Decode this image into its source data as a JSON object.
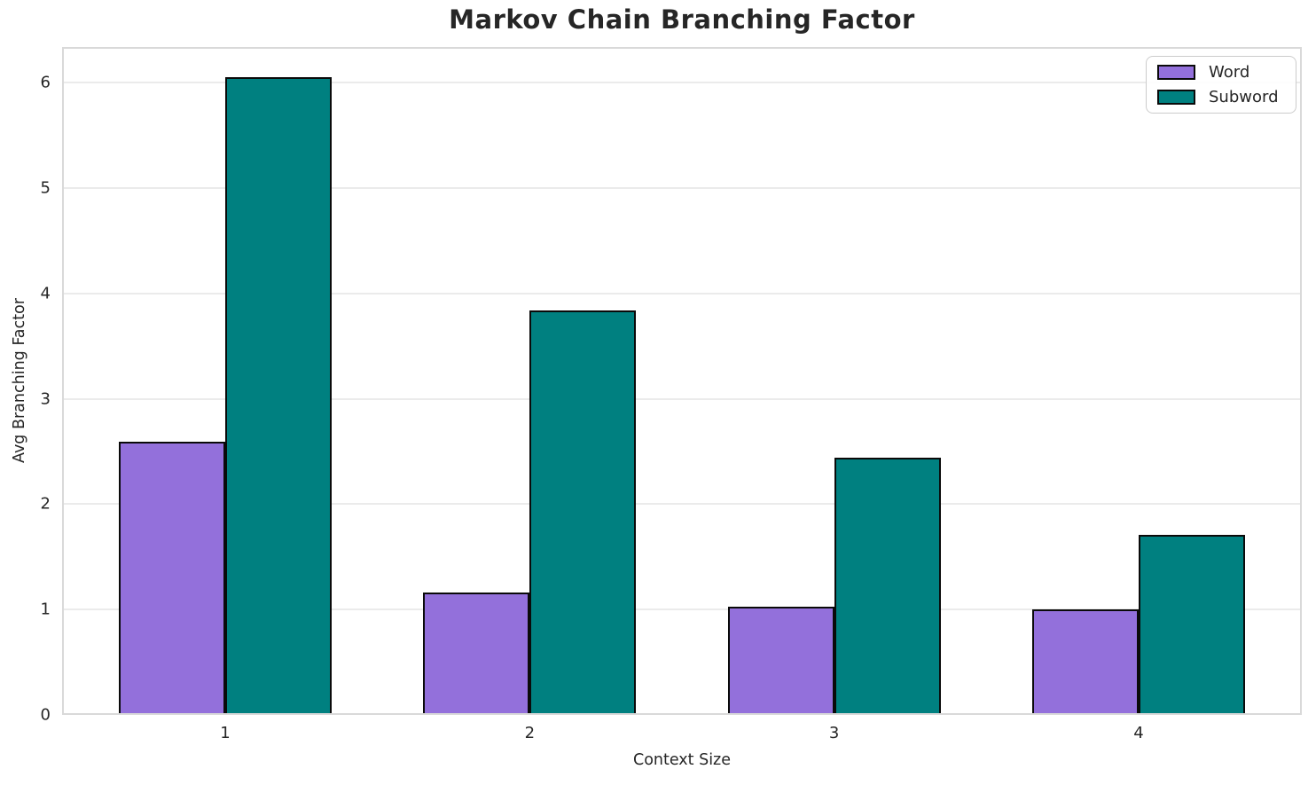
{
  "chart_data": {
    "type": "bar",
    "title": "Markov Chain Branching Factor",
    "xlabel": "Context Size",
    "ylabel": "Avg Branching Factor",
    "categories": [
      "1",
      "2",
      "3",
      "4"
    ],
    "series": [
      {
        "name": "Word",
        "color": "#9370DB",
        "values": [
          2.59,
          1.16,
          1.03,
          1.0
        ]
      },
      {
        "name": "Subword",
        "color": "#008080",
        "values": [
          6.05,
          3.84,
          2.44,
          1.71
        ]
      }
    ],
    "ylim": [
      0,
      6.34
    ],
    "yticks": [
      0,
      1,
      2,
      3,
      4,
      5,
      6
    ],
    "grid": "horizontal",
    "legend_position": "upper-right",
    "colors": {
      "bar_edge": "#0a0a0a",
      "grid_line": "#ebebeb",
      "spine": "#d9d9d9",
      "text": "#262626",
      "legend_border": "#cccccc"
    }
  }
}
